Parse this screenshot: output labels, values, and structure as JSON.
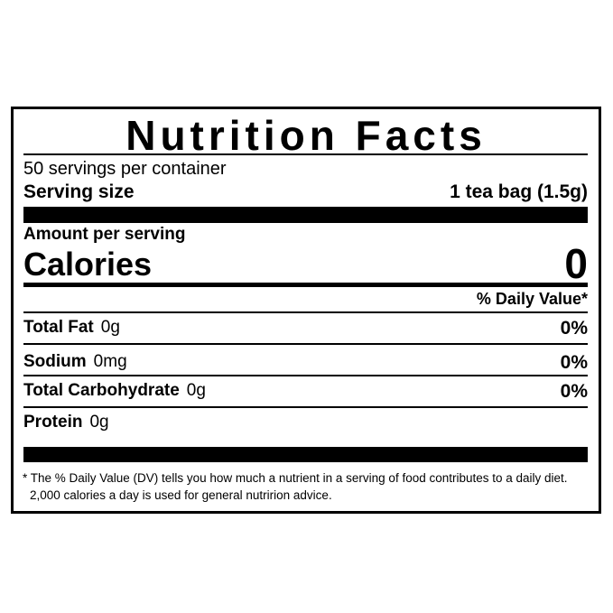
{
  "header": {
    "title": "Nutrition Facts",
    "servings": "50 servings per container",
    "serving_size_label": "Serving size",
    "serving_size_value": "1 tea bag (1.5g)"
  },
  "calories": {
    "amount_per_serving": "Amount per serving",
    "label": "Calories",
    "value": "0"
  },
  "daily_value_header": "% Daily Value*",
  "nutrients": [
    {
      "name": "Total Fat",
      "amount": "0g",
      "dv": "0%"
    },
    {
      "name": "Sodium",
      "amount": "0mg",
      "dv": "0%"
    },
    {
      "name": "Total Carbohydrate",
      "amount": "0g",
      "dv": "0%"
    },
    {
      "name": "Protein",
      "amount": "0g",
      "dv": null
    }
  ],
  "footnote": "* The % Daily Value (DV) tells you how much a nutrient in a serving of food contributes to a daily diet. 2,000 calories a day is used for general nutririon advice."
}
